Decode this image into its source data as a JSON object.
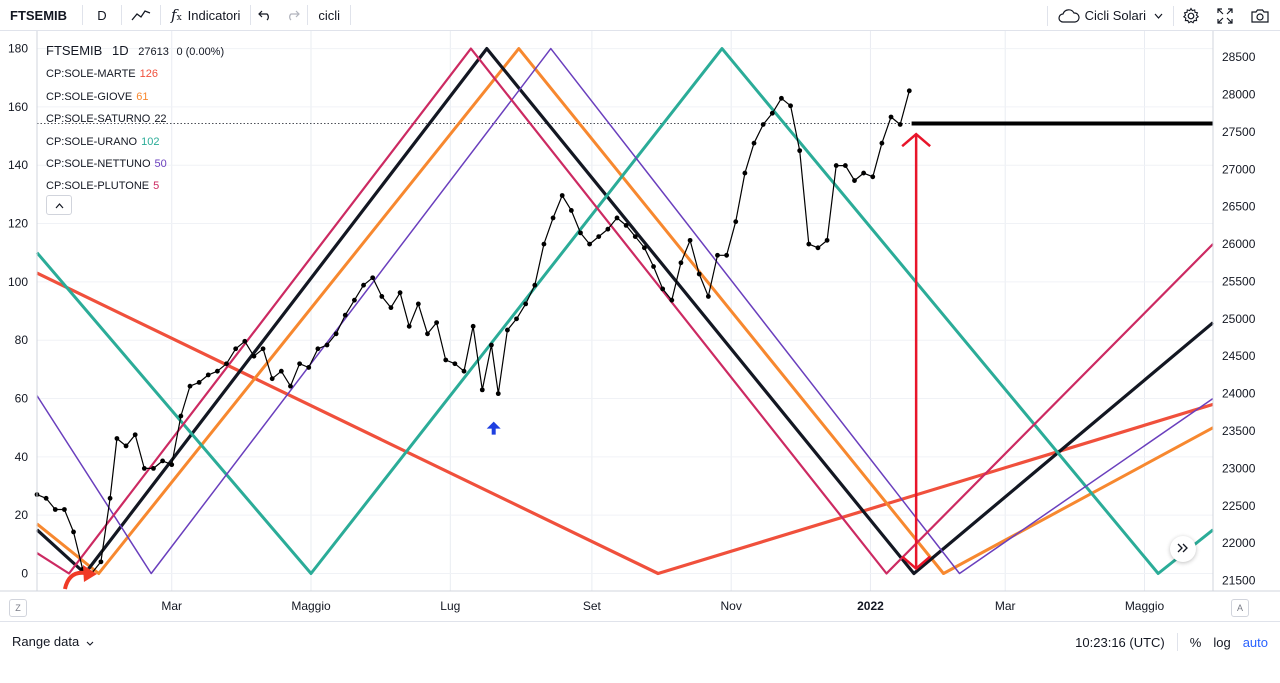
{
  "toolbar": {
    "symbol": "FTSEMIB",
    "interval": "D",
    "indicators_label": "Indicatori",
    "layout_name": "cicli",
    "template_name": "Cicli Solari"
  },
  "legend": {
    "title": "FTSEMIB",
    "interval": "1D",
    "price": "27613",
    "change": "0 (0.00%)",
    "items": [
      {
        "label": "CP:SOLE-MARTE",
        "value": "126",
        "color": "#f0503c"
      },
      {
        "label": "CP:SOLE-GIOVE",
        "value": "61",
        "color": "#f7882f"
      },
      {
        "label": "CP:SOLE-SATURNO",
        "value": "22",
        "color": "#131722"
      },
      {
        "label": "CP:SOLE-URANO",
        "value": "102",
        "color": "#2bac98"
      },
      {
        "label": "CP:SOLE-NETTUNO",
        "value": "50",
        "color": "#6a3fbd"
      },
      {
        "label": "CP:SOLE-PLUTONE",
        "value": "5",
        "color": "#cc2a62"
      }
    ]
  },
  "bottom": {
    "range_label": "Range data",
    "clock": "10:23:16 (UTC)",
    "percent": "%",
    "log": "log",
    "auto": "auto"
  },
  "corners": {
    "left": "Z",
    "right": "A"
  },
  "chart_data": {
    "type": "line",
    "x_ticks": [
      "Mar",
      "Maggio",
      "Lug",
      "Set",
      "Nov",
      "2022",
      "Mar",
      "Maggio"
    ],
    "left_axis": {
      "ticks": [
        0,
        20,
        40,
        60,
        80,
        100,
        120,
        140,
        160,
        180
      ],
      "range": [
        -6,
        185
      ]
    },
    "right_axis": {
      "ticks": [
        21500,
        22000,
        22500,
        23000,
        23500,
        24000,
        24500,
        25000,
        25500,
        26000,
        26500,
        27000,
        27500,
        28000,
        28500
      ],
      "range": [
        21360,
        28810
      ]
    },
    "price_line_level": 27613,
    "grid": true,
    "legend_position": "top-left",
    "series": [
      {
        "name": "CP:SOLE-MARTE",
        "color": "#f0503c",
        "width": 3.2,
        "x": [
          "2021-01-01",
          "2021-09-30",
          "2022-05-31"
        ],
        "y": [
          103,
          0,
          58
        ]
      },
      {
        "name": "CP:SOLE-GIOVE",
        "color": "#f7882f",
        "width": 3,
        "x": [
          "2021-01-01",
          "2021-01-28",
          "2021-07-31",
          "2022-02-02",
          "2022-05-31"
        ],
        "y": [
          17,
          0,
          180,
          0,
          50
        ]
      },
      {
        "name": "CP:SOLE-SATURNO",
        "color": "#131722",
        "width": 3.2,
        "x": [
          "2021-01-01",
          "2021-01-22",
          "2021-07-17",
          "2022-01-20",
          "2022-05-31"
        ],
        "y": [
          15,
          0,
          180,
          0,
          86
        ]
      },
      {
        "name": "CP:SOLE-URANO",
        "color": "#2bac98",
        "width": 3,
        "x": [
          "2021-01-01",
          "2021-05-01",
          "2021-10-28",
          "2022-05-07",
          "2022-05-31"
        ],
        "y": [
          110,
          0,
          180,
          0,
          15
        ]
      },
      {
        "name": "CP:SOLE-NETTUNO",
        "color": "#6a3fbd",
        "width": 1.5,
        "x": [
          "2021-01-01",
          "2021-02-20",
          "2021-08-14",
          "2022-02-09",
          "2022-05-31"
        ],
        "y": [
          61,
          0,
          180,
          0,
          60
        ]
      },
      {
        "name": "CP:SOLE-PLUTONE",
        "color": "#cc2a62",
        "width": 2.2,
        "x": [
          "2021-01-01",
          "2021-01-15",
          "2021-07-10",
          "2022-01-08",
          "2022-05-31"
        ],
        "y": [
          7,
          0,
          180,
          0,
          113
        ]
      },
      {
        "name": "FTSEMIB",
        "color": "#000000",
        "width": 1.2,
        "markers": true,
        "x": [
          "2021-01-01",
          "2021-01-05",
          "2021-01-09",
          "2021-01-13",
          "2021-01-17",
          "2021-01-21",
          "2021-01-25",
          "2021-01-29",
          "2021-02-02",
          "2021-02-05",
          "2021-02-09",
          "2021-02-13",
          "2021-02-17",
          "2021-02-21",
          "2021-02-25",
          "2021-03-01",
          "2021-03-05",
          "2021-03-09",
          "2021-03-13",
          "2021-03-17",
          "2021-03-21",
          "2021-03-25",
          "2021-03-29",
          "2021-04-02",
          "2021-04-06",
          "2021-04-10",
          "2021-04-14",
          "2021-04-18",
          "2021-04-22",
          "2021-04-26",
          "2021-04-30",
          "2021-05-04",
          "2021-05-08",
          "2021-05-12",
          "2021-05-16",
          "2021-05-20",
          "2021-05-24",
          "2021-05-28",
          "2021-06-01",
          "2021-06-05",
          "2021-06-09",
          "2021-06-13",
          "2021-06-17",
          "2021-06-21",
          "2021-06-25",
          "2021-06-29",
          "2021-07-03",
          "2021-07-07",
          "2021-07-11",
          "2021-07-15",
          "2021-07-19",
          "2021-07-22",
          "2021-07-26",
          "2021-07-30",
          "2021-08-03",
          "2021-08-07",
          "2021-08-11",
          "2021-08-15",
          "2021-08-19",
          "2021-08-23",
          "2021-08-27",
          "2021-08-31",
          "2021-09-04",
          "2021-09-08",
          "2021-09-12",
          "2021-09-16",
          "2021-09-20",
          "2021-09-24",
          "2021-09-28",
          "2021-10-02",
          "2021-10-06",
          "2021-10-10",
          "2021-10-14",
          "2021-10-18",
          "2021-10-22",
          "2021-10-26",
          "2021-10-30",
          "2021-11-03",
          "2021-11-07",
          "2021-11-11",
          "2021-11-15",
          "2021-11-19",
          "2021-11-23",
          "2021-11-27",
          "2021-12-01",
          "2021-12-05",
          "2021-12-09",
          "2021-12-13",
          "2021-12-17",
          "2021-12-21",
          "2021-12-25",
          "2021-12-29",
          "2022-01-02",
          "2022-01-06",
          "2022-01-10",
          "2022-01-14",
          "2022-01-18"
        ],
        "y": [
          22650,
          22600,
          22450,
          22450,
          22150,
          21650,
          21600,
          21750,
          22600,
          23400,
          23300,
          23450,
          23000,
          23000,
          23100,
          23050,
          23700,
          24100,
          24150,
          24250,
          24300,
          24400,
          24600,
          24700,
          24500,
          24600,
          24200,
          24300,
          24100,
          24400,
          24350,
          24600,
          24650,
          24800,
          25050,
          25250,
          25450,
          25550,
          25300,
          25150,
          25350,
          24900,
          25200,
          24800,
          24950,
          24450,
          24400,
          24300,
          24900,
          24050,
          24650,
          24000,
          24850,
          25000,
          25200,
          25450,
          26000,
          26350,
          26650,
          26450,
          26150,
          26000,
          26100,
          26200,
          26350,
          26250,
          26100,
          25950,
          25700,
          25400,
          25250,
          25750,
          26050,
          25600,
          25300,
          25850,
          25850,
          26300,
          26950,
          27350,
          27600,
          27750,
          27950,
          27850,
          27250,
          26000,
          25950,
          26050,
          27050,
          27050,
          26850,
          26950,
          26900,
          27350,
          27700,
          27600,
          28050
        ]
      },
      {
        "name": "future-flat",
        "color": "#000000",
        "width": 4,
        "x": [
          "2022-01-19",
          "2022-05-31"
        ],
        "y": [
          27613,
          27613
        ]
      }
    ],
    "annotations": [
      {
        "type": "arrow-vertical",
        "color": "#e8152a",
        "x": "2022-01-21",
        "y_from": 27470,
        "y_to": 21660
      },
      {
        "type": "marker-up",
        "color": "#1e3fe0",
        "x": "2021-07-20"
      },
      {
        "type": "curved-arrow",
        "color": "#f03a26",
        "x": "2021-01-22"
      }
    ]
  }
}
